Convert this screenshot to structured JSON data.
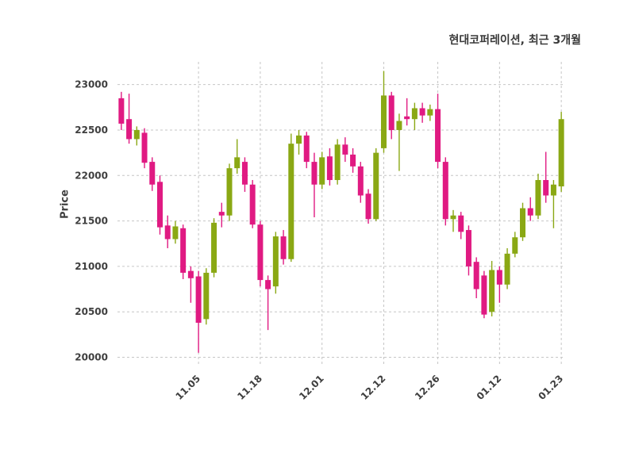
{
  "chart_data": {
    "type": "candlestick",
    "title": "현대코퍼레이션, 최근 3개월",
    "ylabel": "Price",
    "ylim": [
      19900,
      23250
    ],
    "y_ticks": [
      20000,
      20500,
      21000,
      21500,
      22000,
      22500,
      23000
    ],
    "x_tick_labels": [
      "11.05",
      "11.18",
      "12.01",
      "12.12",
      "12.26",
      "01.12",
      "01.23"
    ],
    "x_tick_indices": [
      10,
      18,
      26,
      34,
      41,
      49,
      57
    ],
    "up_color": "#8aa814",
    "down_color": "#e01a82",
    "grid": "dashed",
    "legend": "none",
    "candles": [
      [
        22850,
        22920,
        22500,
        22570
      ],
      [
        22620,
        22900,
        22350,
        22400
      ],
      [
        22400,
        22540,
        22330,
        22500
      ],
      [
        22470,
        22520,
        22080,
        22140
      ],
      [
        22150,
        22200,
        21830,
        21900
      ],
      [
        21930,
        22000,
        21350,
        21430
      ],
      [
        21450,
        21560,
        21200,
        21300
      ],
      [
        21300,
        21500,
        21250,
        21440
      ],
      [
        21420,
        21460,
        20860,
        20930
      ],
      [
        20950,
        21000,
        20600,
        20870
      ],
      [
        20890,
        20950,
        20050,
        20380
      ],
      [
        20420,
        20980,
        20360,
        20930
      ],
      [
        20930,
        21530,
        20880,
        21480
      ],
      [
        21600,
        21700,
        21430,
        21560
      ],
      [
        21560,
        22130,
        21500,
        22080
      ],
      [
        22080,
        22400,
        22020,
        22200
      ],
      [
        22150,
        22200,
        21820,
        21900
      ],
      [
        21900,
        21950,
        21420,
        21460
      ],
      [
        21460,
        21500,
        20780,
        20850
      ],
      [
        20850,
        20900,
        20300,
        20750
      ],
      [
        20780,
        21380,
        20700,
        21330
      ],
      [
        21330,
        21400,
        21020,
        21080
      ],
      [
        21080,
        22460,
        21050,
        22350
      ],
      [
        22350,
        22500,
        22230,
        22440
      ],
      [
        22440,
        22480,
        22080,
        22150
      ],
      [
        22150,
        22250,
        21540,
        21900
      ],
      [
        21900,
        22260,
        21850,
        22200
      ],
      [
        22210,
        22300,
        21890,
        21950
      ],
      [
        21950,
        22400,
        21900,
        22340
      ],
      [
        22340,
        22420,
        22150,
        22230
      ],
      [
        22230,
        22300,
        22030,
        22100
      ],
      [
        22100,
        22150,
        21700,
        21780
      ],
      [
        21800,
        21850,
        21470,
        21520
      ],
      [
        21520,
        22300,
        21500,
        22250
      ],
      [
        22300,
        23150,
        22250,
        22880
      ],
      [
        22880,
        22920,
        22400,
        22500
      ],
      [
        22500,
        22680,
        22050,
        22600
      ],
      [
        22650,
        22850,
        22550,
        22620
      ],
      [
        22620,
        22800,
        22500,
        22740
      ],
      [
        22740,
        22800,
        22580,
        22660
      ],
      [
        22660,
        22780,
        22600,
        22730
      ],
      [
        22730,
        22900,
        22080,
        22150
      ],
      [
        22150,
        22200,
        21450,
        21520
      ],
      [
        21520,
        21620,
        21380,
        21560
      ],
      [
        21560,
        21600,
        21300,
        21380
      ],
      [
        21400,
        21450,
        20900,
        21000
      ],
      [
        21050,
        21100,
        20650,
        20750
      ],
      [
        20900,
        20950,
        20430,
        20470
      ],
      [
        20500,
        21060,
        20450,
        20960
      ],
      [
        20960,
        21000,
        20600,
        20800
      ],
      [
        20800,
        21200,
        20750,
        21140
      ],
      [
        21140,
        21380,
        21100,
        21320
      ],
      [
        21320,
        21700,
        21280,
        21640
      ],
      [
        21640,
        21760,
        21500,
        21560
      ],
      [
        21560,
        22020,
        21520,
        21950
      ],
      [
        21950,
        22260,
        21700,
        21780
      ],
      [
        21780,
        21950,
        21420,
        21900
      ],
      [
        21880,
        22700,
        21820,
        22620
      ]
    ]
  }
}
